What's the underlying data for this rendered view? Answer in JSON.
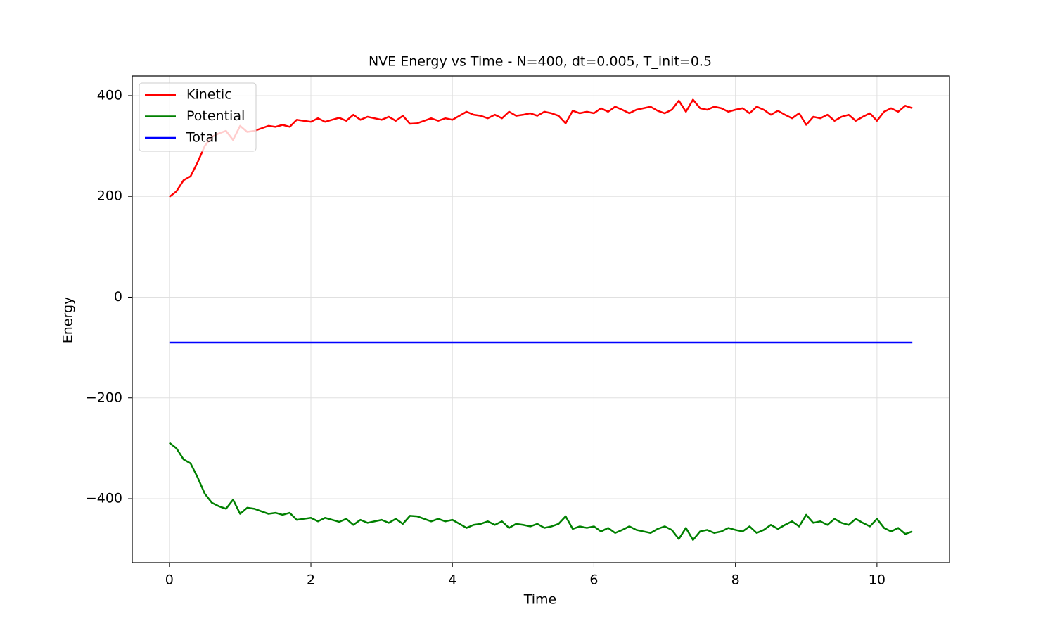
{
  "chart_data": {
    "type": "line",
    "title": "NVE Energy vs Time - N=400, dt=0.005, T_init=0.5",
    "xlabel": "Time",
    "ylabel": "Energy",
    "x": [
      0,
      0.1,
      0.2,
      0.3,
      0.4,
      0.5,
      0.6,
      0.7,
      0.8,
      0.9,
      1,
      1.1,
      1.2,
      1.3,
      1.4,
      1.5,
      1.6,
      1.7,
      1.8,
      1.9,
      2,
      2.1,
      2.2,
      2.3,
      2.4,
      2.5,
      2.6,
      2.7,
      2.8,
      2.9,
      3,
      3.1,
      3.2,
      3.3,
      3.4,
      3.5,
      3.6,
      3.7,
      3.8,
      3.9,
      4,
      4.1,
      4.2,
      4.3,
      4.4,
      4.5,
      4.6,
      4.7,
      4.8,
      4.9,
      5,
      5.1,
      5.2,
      5.3,
      5.4,
      5.5,
      5.6,
      5.7,
      5.8,
      5.9,
      6,
      6.1,
      6.2,
      6.3,
      6.4,
      6.5,
      6.6,
      6.7,
      6.8,
      6.9,
      7,
      7.1,
      7.2,
      7.3,
      7.4,
      7.5,
      7.6,
      7.7,
      7.8,
      7.9,
      8,
      8.1,
      8.2,
      8.3,
      8.4,
      8.5,
      8.6,
      8.7,
      8.8,
      8.9,
      9,
      9.1,
      9.2,
      9.3,
      9.4,
      9.5,
      9.6,
      9.7,
      9.8,
      9.9,
      10,
      10.1,
      10.2,
      10.3,
      10.4,
      10.5
    ],
    "series": [
      {
        "name": "Kinetic",
        "color": "#ff0000",
        "values": [
          199,
          210,
          232,
          240,
          268,
          300,
          318,
          325,
          330,
          312,
          340,
          328,
          330,
          335,
          340,
          338,
          342,
          338,
          352,
          350,
          348,
          355,
          348,
          352,
          356,
          350,
          362,
          352,
          358,
          355,
          352,
          358,
          350,
          360,
          344,
          345,
          350,
          355,
          350,
          355,
          352,
          360,
          368,
          362,
          360,
          355,
          362,
          355,
          368,
          360,
          362,
          365,
          360,
          368,
          365,
          360,
          345,
          370,
          365,
          368,
          365,
          375,
          368,
          378,
          372,
          365,
          372,
          375,
          378,
          370,
          365,
          372,
          390,
          368,
          392,
          375,
          372,
          378,
          375,
          368,
          372,
          375,
          365,
          378,
          372,
          362,
          370,
          362,
          355,
          365,
          342,
          358,
          355,
          362,
          350,
          358,
          362,
          350,
          358,
          365,
          350,
          368,
          375,
          368,
          380,
          375
        ]
      },
      {
        "name": "Potential",
        "color": "#008000",
        "values": [
          -289,
          -300,
          -322,
          -330,
          -358,
          -390,
          -408,
          -415,
          -420,
          -402,
          -430,
          -418,
          -420,
          -425,
          -430,
          -428,
          -432,
          -428,
          -442,
          -440,
          -438,
          -445,
          -438,
          -442,
          -446,
          -440,
          -452,
          -442,
          -448,
          -445,
          -442,
          -448,
          -440,
          -450,
          -434,
          -435,
          -440,
          -445,
          -440,
          -445,
          -442,
          -450,
          -458,
          -452,
          -450,
          -445,
          -452,
          -445,
          -458,
          -450,
          -452,
          -455,
          -450,
          -458,
          -455,
          -450,
          -435,
          -460,
          -455,
          -458,
          -455,
          -465,
          -458,
          -468,
          -462,
          -455,
          -462,
          -465,
          -468,
          -460,
          -455,
          -462,
          -480,
          -458,
          -482,
          -465,
          -462,
          -468,
          -465,
          -458,
          -462,
          -465,
          -455,
          -468,
          -462,
          -452,
          -460,
          -452,
          -445,
          -455,
          -432,
          -448,
          -445,
          -452,
          -440,
          -448,
          -452,
          -440,
          -448,
          -455,
          -440,
          -458,
          -465,
          -458,
          -470,
          -465
        ]
      },
      {
        "name": "Total",
        "color": "#0000ff",
        "values": [
          -90,
          -90,
          -90,
          -90,
          -90,
          -90,
          -90,
          -90,
          -90,
          -90,
          -90,
          -90,
          -90,
          -90,
          -90,
          -90,
          -90,
          -90,
          -90,
          -90,
          -90,
          -90,
          -90,
          -90,
          -90,
          -90,
          -90,
          -90,
          -90,
          -90,
          -90,
          -90,
          -90,
          -90,
          -90,
          -90,
          -90,
          -90,
          -90,
          -90,
          -90,
          -90,
          -90,
          -90,
          -90,
          -90,
          -90,
          -90,
          -90,
          -90,
          -90,
          -90,
          -90,
          -90,
          -90,
          -90,
          -90,
          -90,
          -90,
          -90,
          -90,
          -90,
          -90,
          -90,
          -90,
          -90,
          -90,
          -90,
          -90,
          -90,
          -90,
          -90,
          -90,
          -90,
          -90,
          -90,
          -90,
          -90,
          -90,
          -90,
          -90,
          -90,
          -90,
          -90,
          -90,
          -90,
          -90,
          -90,
          -90,
          -90,
          -90,
          -90,
          -90,
          -90,
          -90,
          -90,
          -90,
          -90,
          -90,
          -90,
          -90,
          -90,
          -90,
          -90,
          -90,
          -90
        ]
      }
    ],
    "xlim": [
      -0.525,
      11.025
    ],
    "xticks": [
      0,
      2,
      4,
      6,
      8,
      10
    ],
    "ylim": [
      -527,
      439
    ],
    "yticks": [
      {
        "value": -400,
        "label": "−400"
      },
      {
        "value": -200,
        "label": "−200"
      },
      0,
      200,
      400
    ],
    "grid": true,
    "legend": "upper left"
  }
}
